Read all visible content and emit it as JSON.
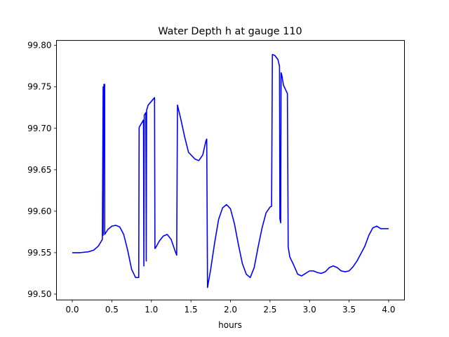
{
  "chart_data": {
    "type": "line",
    "title": "Water Depth h at gauge 110",
    "xlabel": "hours",
    "ylabel": "",
    "xlim": [
      -0.2,
      4.2
    ],
    "ylim": [
      99.493,
      99.806
    ],
    "grid": false,
    "legend": "none",
    "x_ticks": [
      0.0,
      0.5,
      1.0,
      1.5,
      2.0,
      2.5,
      3.0,
      3.5,
      4.0
    ],
    "x_tick_labels": [
      "0.0",
      "0.5",
      "1.0",
      "1.5",
      "2.0",
      "2.5",
      "3.0",
      "3.5",
      "4.0"
    ],
    "y_ticks": [
      99.5,
      99.55,
      99.6,
      99.65,
      99.7,
      99.75,
      99.8
    ],
    "y_tick_labels": [
      "99.50",
      "99.55",
      "99.60",
      "99.65",
      "99.70",
      "99.75",
      "99.80"
    ],
    "series": [
      {
        "color": "#0000ff",
        "x": [
          0.0,
          0.1,
          0.2,
          0.27,
          0.33,
          0.38,
          0.39,
          0.39,
          0.4,
          0.41,
          0.41,
          0.45,
          0.5,
          0.55,
          0.6,
          0.65,
          0.7,
          0.75,
          0.8,
          0.84,
          0.845,
          0.85,
          0.9,
          0.905,
          0.91,
          0.93,
          0.935,
          0.94,
          0.95,
          0.955,
          0.96,
          1.04,
          1.045,
          1.06,
          1.1,
          1.15,
          1.2,
          1.25,
          1.3,
          1.32,
          1.33,
          1.37,
          1.42,
          1.47,
          1.55,
          1.6,
          1.65,
          1.69,
          1.7,
          1.71,
          1.75,
          1.8,
          1.85,
          1.9,
          1.95,
          2.0,
          2.05,
          2.1,
          2.15,
          2.2,
          2.25,
          2.3,
          2.35,
          2.4,
          2.45,
          2.5,
          2.52,
          2.53,
          2.56,
          2.6,
          2.62,
          2.625,
          2.635,
          2.64,
          2.65,
          2.66,
          2.67,
          2.72,
          2.73,
          2.75,
          2.8,
          2.85,
          2.9,
          2.95,
          3.0,
          3.05,
          3.1,
          3.15,
          3.2,
          3.25,
          3.3,
          3.35,
          3.4,
          3.45,
          3.5,
          3.55,
          3.6,
          3.65,
          3.7,
          3.75,
          3.8,
          3.85,
          3.9,
          3.95,
          4.0
        ],
        "y": [
          99.55,
          99.55,
          99.551,
          99.553,
          99.558,
          99.566,
          99.75,
          99.571,
          99.753,
          99.753,
          99.572,
          99.578,
          99.582,
          99.583,
          99.581,
          99.572,
          99.553,
          99.53,
          99.52,
          99.52,
          99.701,
          99.702,
          99.71,
          99.534,
          99.716,
          99.719,
          99.54,
          99.722,
          99.725,
          99.727,
          99.728,
          99.737,
          99.555,
          99.557,
          99.564,
          99.57,
          99.572,
          99.566,
          99.552,
          99.547,
          99.728,
          99.712,
          99.69,
          99.671,
          99.663,
          99.661,
          99.668,
          99.685,
          99.687,
          99.508,
          99.53,
          99.562,
          99.59,
          99.604,
          99.608,
          99.603,
          99.585,
          99.56,
          99.537,
          99.524,
          99.52,
          99.532,
          99.557,
          99.58,
          99.598,
          99.605,
          99.606,
          99.789,
          99.788,
          99.783,
          99.775,
          99.591,
          99.586,
          99.767,
          99.764,
          99.758,
          99.752,
          99.742,
          99.557,
          99.545,
          99.535,
          99.524,
          99.522,
          99.525,
          99.528,
          99.528,
          99.526,
          99.525,
          99.527,
          99.532,
          99.534,
          99.532,
          99.528,
          99.527,
          99.528,
          99.533,
          99.54,
          99.549,
          99.558,
          99.571,
          99.58,
          99.582,
          99.579,
          99.579,
          99.579
        ]
      }
    ]
  }
}
